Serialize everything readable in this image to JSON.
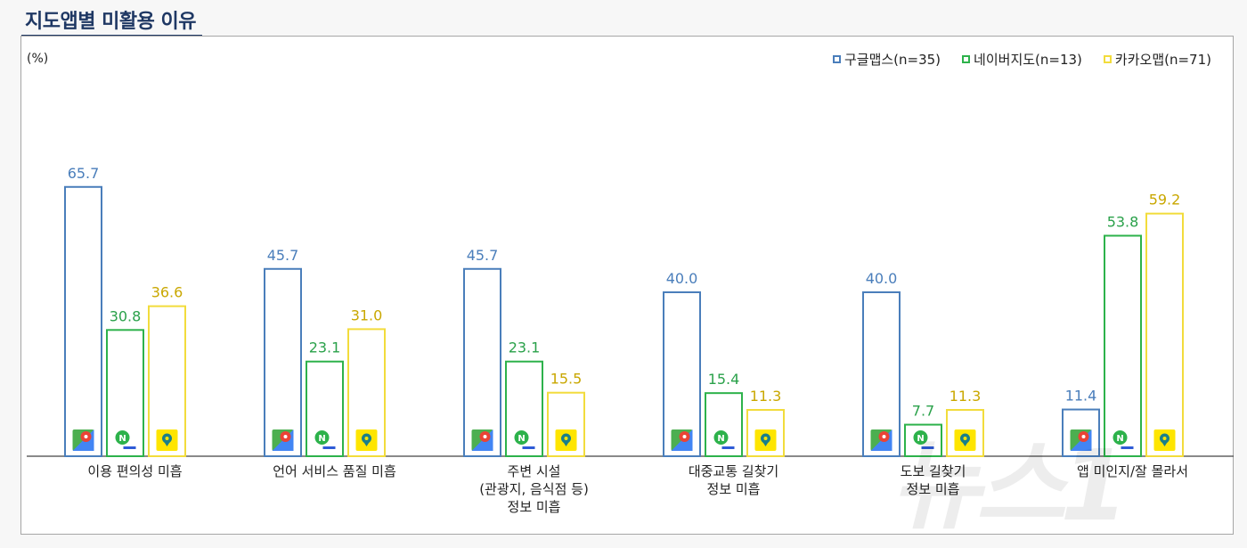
{
  "title": "지도앱별 미활용 이유",
  "chart_data": {
    "type": "bar",
    "unit_label": "(%)",
    "ylim": [
      0,
      100
    ],
    "categories": [
      [
        "이용 편의성 미흡"
      ],
      [
        "언어 서비스 품질 미흡"
      ],
      [
        "주변 시설",
        "(관광지, 음식점 등)",
        "정보 미흡"
      ],
      [
        "대중교통 길찾기",
        "정보 미흡"
      ],
      [
        "도보 길찾기",
        "정보 미흡"
      ],
      [
        "앱 미인지/잘 몰라서"
      ]
    ],
    "series": [
      {
        "name": "구글맵스(n=35)",
        "color": "#4a7ebb",
        "label_color": "#4a7ebb",
        "icon": "google-maps-icon",
        "values": [
          65.7,
          45.7,
          45.7,
          40.0,
          40.0,
          11.4
        ]
      },
      {
        "name": "네이버지도(n=13)",
        "color": "#2db24b",
        "label_color": "#2aa14a",
        "icon": "naver-map-icon",
        "values": [
          30.8,
          23.1,
          23.1,
          15.4,
          7.7,
          53.8
        ]
      },
      {
        "name": "카카오맵(n=71)",
        "color": "#f2dc3c",
        "label_color": "#c9a700",
        "icon": "kakao-map-icon",
        "values": [
          36.6,
          31.0,
          15.5,
          11.3,
          11.3,
          59.2
        ]
      }
    ],
    "legend_position": "top-right",
    "grid": false
  },
  "watermark": "뉴스1"
}
